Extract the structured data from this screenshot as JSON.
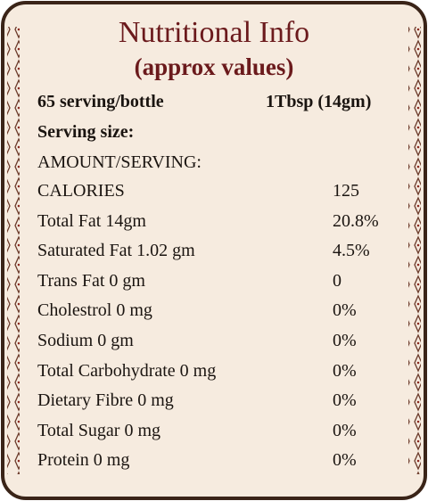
{
  "header": {
    "title": "Nutritional Info",
    "subtitle": "(approx values)"
  },
  "serving": {
    "per_bottle": "65 serving/bottle",
    "size": "1Tbsp (14gm)",
    "size_label": "Serving size:"
  },
  "amount_heading": "AMOUNT/SERVING:",
  "table": {
    "rows": [
      [
        "CALORIES",
        "125"
      ],
      [
        "Total Fat 14gm",
        "20.8%"
      ],
      [
        "Saturated Fat 1.02 gm",
        "4.5%"
      ],
      [
        "Trans Fat 0 gm",
        "0"
      ],
      [
        "Cholestrol 0 mg",
        "0%"
      ],
      [
        "Sodium 0 gm",
        "0%"
      ],
      [
        "Total Carbohydrate 0 mg",
        "0%"
      ],
      [
        "Dietary Fibre 0 mg",
        "0%"
      ],
      [
        "Total Sugar 0 mg",
        "0%"
      ],
      [
        "Protein 0 mg",
        "0%"
      ]
    ]
  }
}
